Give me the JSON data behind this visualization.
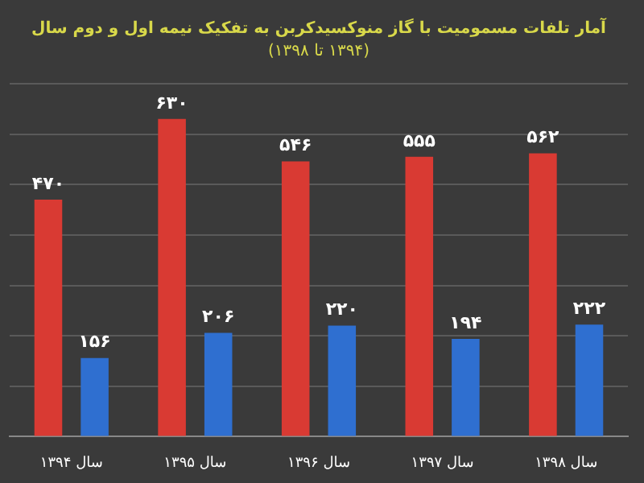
{
  "chart_data": {
    "type": "bar",
    "title": "آمار تلفات مسمومیت با گاز منوکسیدکربن به تفکیک نیمه اول و دوم سال",
    "subtitle": "(۱۳۹۴ تا ۱۳۹۸)",
    "categories": [
      "سال ۱۳۹۴",
      "سال ۱۳۹۵",
      "سال ۱۳۹۶",
      "سال ۱۳۹۷",
      "سال ۱۳۹۸"
    ],
    "series": [
      {
        "color": "#d93a33",
        "values": [
          470,
          630,
          546,
          555,
          562
        ],
        "value_labels": [
          "۴۷۰",
          "۶۳۰",
          "۵۴۶",
          "۵۵۵",
          "۵۶۲"
        ]
      },
      {
        "color": "#2f6fd0",
        "values": [
          156,
          206,
          220,
          194,
          222
        ],
        "value_labels": [
          "۱۵۶",
          "۲۰۶",
          "۲۲۰",
          "۱۹۴",
          "۲۲۲"
        ]
      }
    ],
    "grid": "y",
    "tick_labels": "x",
    "legend": false
  }
}
